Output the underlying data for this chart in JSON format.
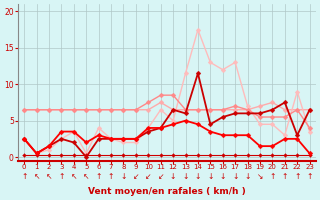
{
  "background_color": "#d8f5f5",
  "grid_color": "#b0c8c8",
  "xlabel": "Vent moyen/en rafales ( km/h )",
  "x_ticks": [
    0,
    1,
    2,
    3,
    4,
    5,
    6,
    7,
    8,
    9,
    10,
    11,
    12,
    13,
    14,
    15,
    16,
    17,
    18,
    19,
    20,
    21,
    22,
    23
  ],
  "ylim": [
    -0.5,
    21
  ],
  "xlim": [
    -0.5,
    23.5
  ],
  "y_ticks": [
    0,
    5,
    10,
    15,
    20
  ],
  "series": [
    {
      "x": [
        0,
        1,
        2,
        3,
        4,
        5,
        6,
        7,
        8,
        9,
        10,
        11,
        12,
        13,
        14,
        15,
        16,
        17,
        18,
        19,
        20,
        21,
        22,
        23
      ],
      "y": [
        6.5,
        6.5,
        6.5,
        6.5,
        6.5,
        6.5,
        6.5,
        6.5,
        6.5,
        6.5,
        6.5,
        7.5,
        6.5,
        6.5,
        6.5,
        6.5,
        6.5,
        6.5,
        6.5,
        7.0,
        7.5,
        6.5,
        6.5,
        6.5
      ],
      "color": "#ffaaaa",
      "linewidth": 1.0,
      "marker": "D",
      "markersize": 2.5
    },
    {
      "x": [
        0,
        1,
        2,
        3,
        4,
        5,
        6,
        7,
        8,
        9,
        10,
        11,
        12,
        13,
        14,
        15,
        16,
        17,
        18,
        19,
        20,
        21,
        22,
        23
      ],
      "y": [
        2.5,
        0.5,
        1.0,
        2.5,
        3.5,
        0.5,
        4.0,
        2.5,
        2.0,
        2.0,
        4.0,
        6.5,
        5.0,
        11.5,
        17.5,
        13.0,
        12.0,
        13.0,
        7.0,
        4.5,
        4.5,
        3.0,
        9.0,
        3.5
      ],
      "color": "#ffbbbb",
      "linewidth": 1.0,
      "marker": "D",
      "markersize": 2.5
    },
    {
      "x": [
        0,
        1,
        2,
        3,
        4,
        5,
        6,
        7,
        8,
        9,
        10,
        11,
        12,
        13,
        14,
        15,
        16,
        17,
        18,
        19,
        20,
        21,
        22,
        23
      ],
      "y": [
        6.5,
        6.5,
        6.5,
        6.5,
        6.5,
        6.5,
        6.5,
        6.5,
        6.5,
        6.5,
        7.5,
        8.5,
        8.5,
        6.5,
        6.5,
        6.5,
        6.5,
        7.0,
        6.5,
        5.5,
        5.5,
        5.5,
        6.5,
        4.0
      ],
      "color": "#ff8888",
      "linewidth": 1.0,
      "marker": "D",
      "markersize": 2.5
    },
    {
      "x": [
        0,
        1,
        2,
        3,
        4,
        5,
        6,
        7,
        8,
        9,
        10,
        11,
        12,
        13,
        14,
        15,
        16,
        17,
        18,
        19,
        20,
        21,
        22,
        23
      ],
      "y": [
        2.5,
        0.5,
        1.5,
        2.5,
        2.0,
        0.0,
        2.5,
        2.5,
        2.5,
        2.5,
        3.5,
        4.0,
        6.5,
        6.0,
        11.5,
        4.5,
        5.5,
        6.0,
        6.0,
        6.0,
        6.5,
        7.5,
        3.0,
        6.5
      ],
      "color": "#cc0000",
      "linewidth": 1.3,
      "marker": "D",
      "markersize": 2.5
    },
    {
      "x": [
        0,
        1,
        2,
        3,
        4,
        5,
        6,
        7,
        8,
        9,
        10,
        11,
        12,
        13,
        14,
        15,
        16,
        17,
        18,
        19,
        20,
        21,
        22,
        23
      ],
      "y": [
        0.3,
        0.3,
        0.3,
        0.3,
        0.3,
        0.3,
        0.3,
        0.3,
        0.3,
        0.3,
        0.3,
        0.3,
        0.3,
        0.3,
        0.3,
        0.3,
        0.3,
        0.3,
        0.3,
        0.3,
        0.3,
        0.3,
        0.3,
        0.3
      ],
      "color": "#cc0000",
      "linewidth": 0.8,
      "marker": "D",
      "markersize": 2.0
    },
    {
      "x": [
        0,
        1,
        2,
        3,
        4,
        5,
        6,
        7,
        8,
        9,
        10,
        11,
        12,
        13,
        14,
        15,
        16,
        17,
        18,
        19,
        20,
        21,
        22,
        23
      ],
      "y": [
        2.5,
        0.5,
        1.5,
        3.5,
        3.5,
        2.0,
        3.0,
        2.5,
        2.5,
        2.5,
        4.0,
        4.0,
        4.5,
        5.0,
        4.5,
        3.5,
        3.0,
        3.0,
        3.0,
        1.5,
        1.5,
        2.5,
        2.5,
        0.5
      ],
      "color": "#ff0000",
      "linewidth": 1.3,
      "marker": "D",
      "markersize": 2.5
    }
  ],
  "arrow_symbols": [
    "↑",
    "↖",
    "↖",
    "↑",
    "↖",
    "↖",
    "↑",
    "↑",
    "↓",
    "↙",
    "↙",
    "↙",
    "↓",
    "↓",
    "↓",
    "↓",
    "↓",
    "↓",
    "↓",
    "↘",
    "↑",
    "↑",
    "↑",
    "↑"
  ],
  "arrow_color": "#cc0000",
  "arrow_fontsize": 5.5,
  "xlabel_fontsize": 6.5,
  "xlabel_color": "#cc0000",
  "tick_fontsize_x": 5.0,
  "tick_fontsize_y": 5.5,
  "tick_color": "#cc0000"
}
